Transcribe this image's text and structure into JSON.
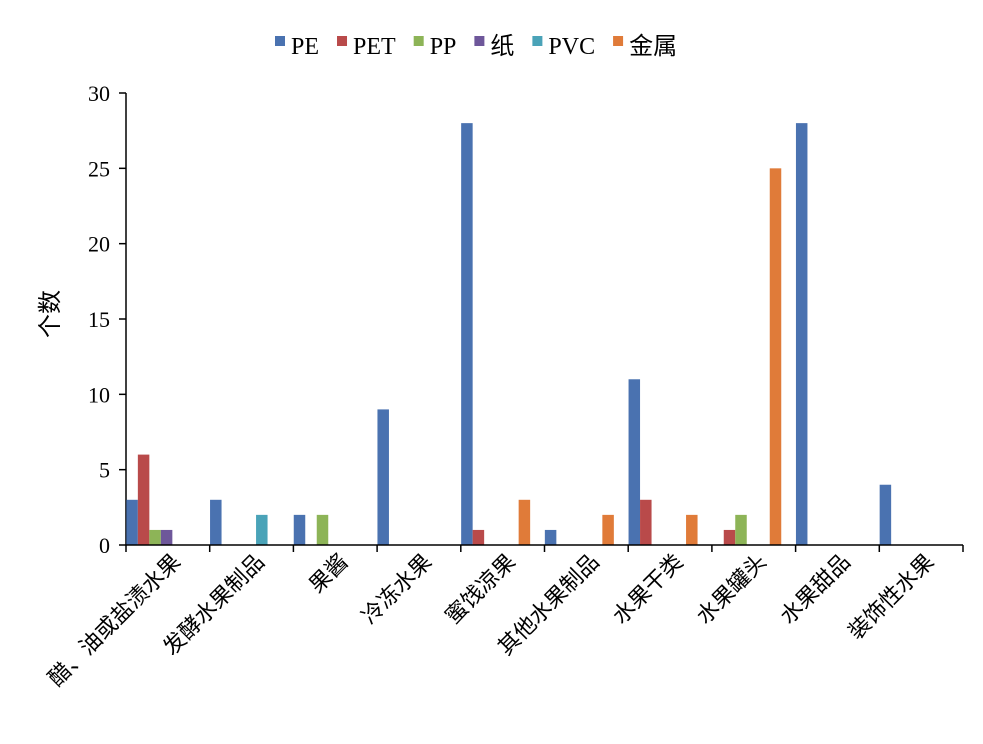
{
  "chart_data": {
    "type": "bar",
    "title": "",
    "xlabel": "",
    "ylabel": "个数",
    "ylim": [
      0,
      30
    ],
    "yticks": [
      0,
      5,
      10,
      15,
      20,
      25,
      30
    ],
    "grid": false,
    "legend_position": "top",
    "categories": [
      "醋、油或盐渍水果",
      "发酵水果制品",
      "果酱",
      "冷冻水果",
      "蜜饯凉果",
      "其他水果制品",
      "水果干类",
      "水果罐头",
      "水果甜品",
      "装饰性水果"
    ],
    "series": [
      {
        "name": "PE",
        "color": "#4A72B0",
        "values": [
          3,
          3,
          2,
          9,
          28,
          1,
          11,
          0,
          28,
          4
        ]
      },
      {
        "name": "PET",
        "color": "#B94A4A",
        "values": [
          6,
          0,
          0,
          0,
          1,
          0,
          3,
          1,
          0,
          0
        ]
      },
      {
        "name": "PP",
        "color": "#8DB457",
        "values": [
          1,
          0,
          2,
          0,
          0,
          0,
          0,
          2,
          0,
          0
        ]
      },
      {
        "name": "纸",
        "color": "#6E579A",
        "values": [
          1,
          0,
          0,
          0,
          0,
          0,
          0,
          0,
          0,
          0
        ]
      },
      {
        "name": "PVC",
        "color": "#4AA3B8",
        "values": [
          0,
          2,
          0,
          0,
          0,
          0,
          0,
          0,
          0,
          0
        ]
      },
      {
        "name": "金属",
        "color": "#E07B39",
        "values": [
          0,
          0,
          0,
          0,
          3,
          2,
          2,
          25,
          0,
          0
        ]
      }
    ]
  }
}
